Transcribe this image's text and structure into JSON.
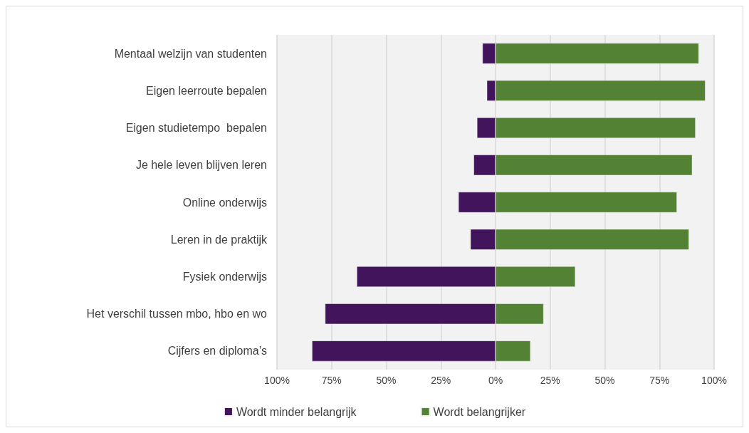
{
  "chart_data": {
    "type": "bar",
    "orientation": "horizontal",
    "stacked": true,
    "categories": [
      "Mentaal welzijn van studenten",
      "Eigen leerroute bepalen",
      "Eigen studietempo  bepalen",
      "Je hele leven blijven leren",
      "Online onderwijs",
      "Leren in de praktijk",
      "Fysiek onderwijs",
      "Het verschil tussen mbo, hbo en wo",
      "Cijfers en diploma’s"
    ],
    "series": [
      {
        "name": "Wordt minder belangrijk",
        "color": "#41145c",
        "values": [
          -6,
          -4,
          -8.5,
          -10,
          -17,
          -11.5,
          -63.5,
          -78,
          -84
        ]
      },
      {
        "name": "Wordt belangrijker",
        "color": "#548235",
        "values": [
          93,
          96,
          91.5,
          90,
          83,
          88.5,
          36.5,
          22,
          16
        ]
      }
    ],
    "xlim": [
      -100,
      100
    ],
    "xticks": [
      {
        "value": -100,
        "label": "100%"
      },
      {
        "value": -75,
        "label": "75%"
      },
      {
        "value": -50,
        "label": "50%"
      },
      {
        "value": -25,
        "label": "25%"
      },
      "0%",
      {
        "value": 25,
        "label": "25%"
      },
      {
        "value": 50,
        "label": "50%"
      },
      {
        "value": 75,
        "label": "75%"
      },
      {
        "value": 100,
        "label": "100%"
      }
    ],
    "grid": "x",
    "legend": "bottom"
  }
}
